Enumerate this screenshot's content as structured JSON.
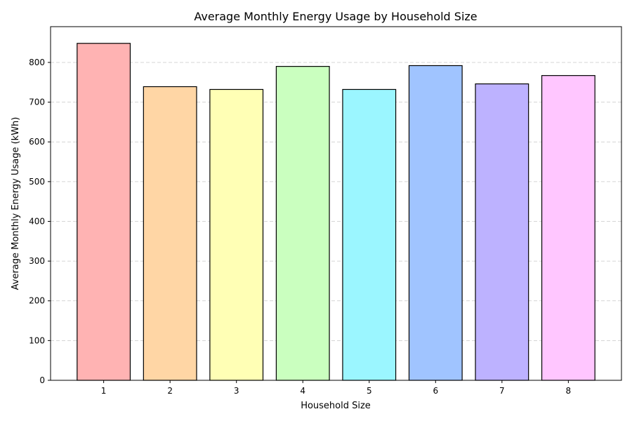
{
  "chart_data": {
    "type": "bar",
    "title": "Average Monthly Energy Usage by Household Size",
    "xlabel": "Household Size",
    "ylabel": "Average Monthly Energy Usage (kWh)",
    "categories": [
      "1",
      "2",
      "3",
      "4",
      "5",
      "6",
      "7",
      "8"
    ],
    "values": [
      848,
      739,
      732,
      790,
      732,
      792,
      746,
      767
    ],
    "ylim": [
      0,
      890
    ],
    "yticks": [
      0,
      100,
      200,
      300,
      400,
      500,
      600,
      700,
      800
    ],
    "grid": "y-dashed",
    "colors": [
      "#ffb3b3",
      "#ffd6a5",
      "#ffffb5",
      "#caffbf",
      "#9bf6ff",
      "#a0c4ff",
      "#bdb2ff",
      "#ffc6ff"
    ],
    "bar_edge_color": "#000000",
    "legend": "none"
  }
}
